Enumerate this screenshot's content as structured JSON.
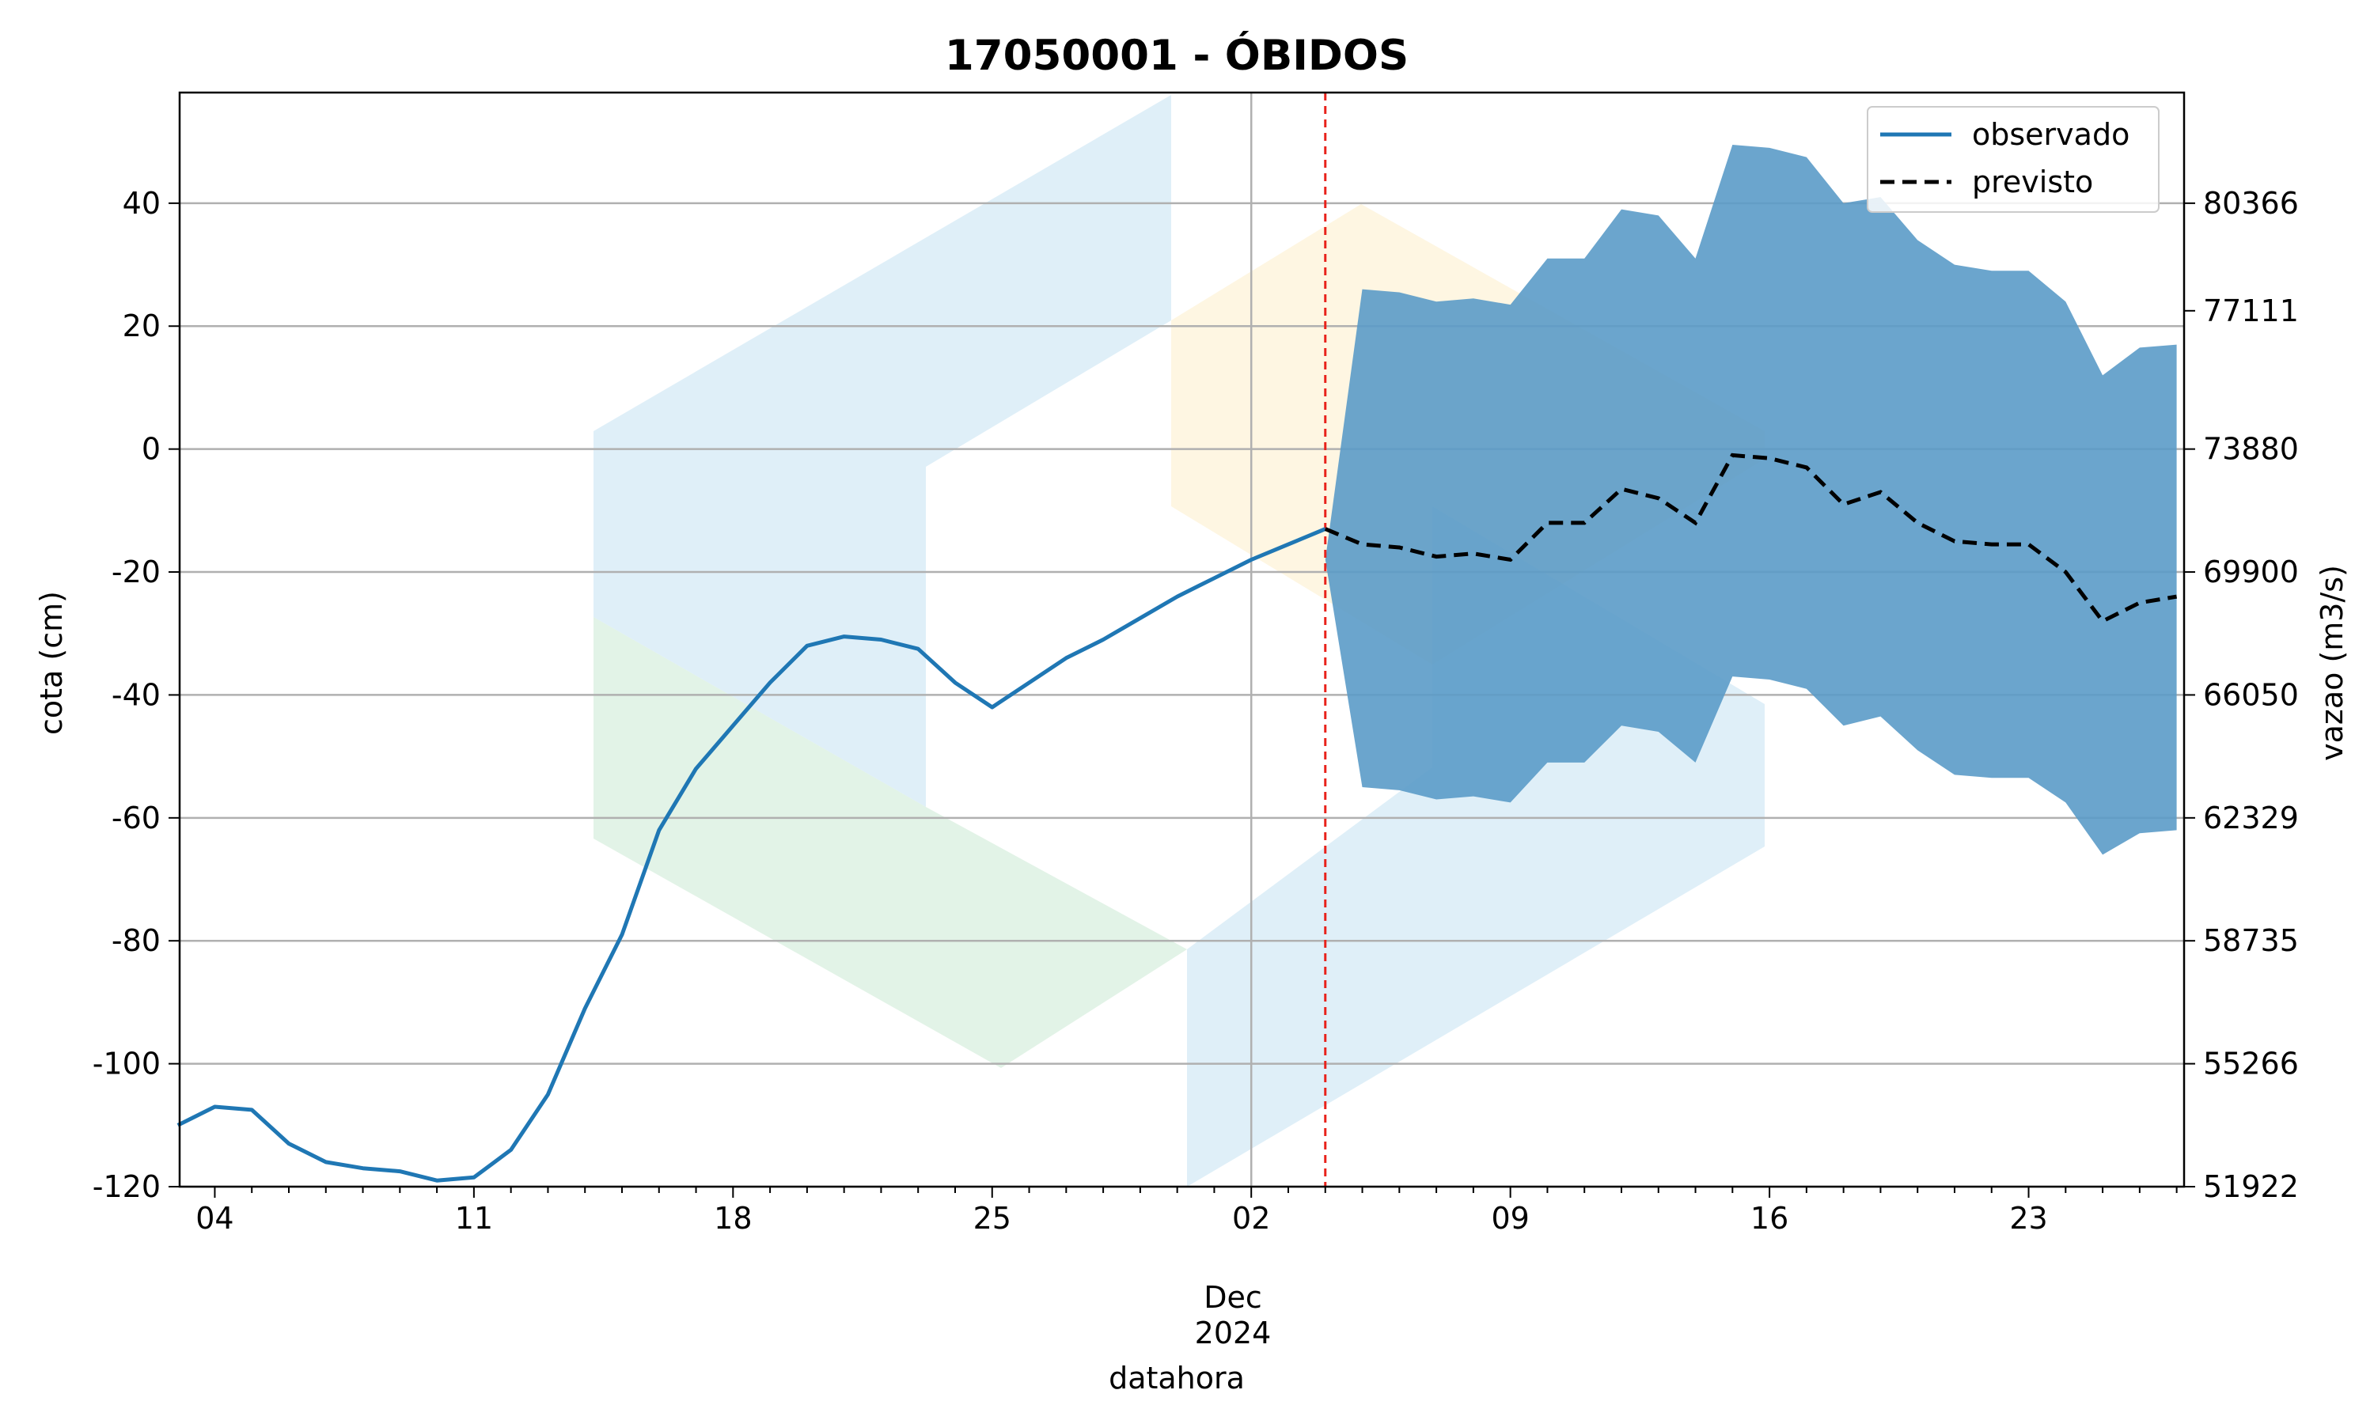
{
  "chart_data": {
    "type": "line",
    "title": "17050001 - ÓBIDOS",
    "xlabel": "datahora",
    "ylabel": "cota (cm)",
    "ylabel_right": "vazao (m3/s)",
    "x_range_days": [
      -0.95,
      53.2
    ],
    "ylim": [
      -120,
      58
    ],
    "y_ticks": [
      40,
      20,
      0,
      -20,
      -40,
      -60,
      -80,
      -100,
      -120
    ],
    "y_tick_labels": [
      "40",
      "20",
      "0",
      "-20",
      "-40",
      "-60",
      "-80",
      "-100",
      "-120"
    ],
    "y_right_ticks": [
      40,
      22.5,
      0,
      -20,
      -40,
      -60,
      -80,
      -100,
      -120
    ],
    "y_right_tick_labels": [
      "80366",
      "77111",
      "73880",
      "69900",
      "66050",
      "62329",
      "58735",
      "55266",
      "51922"
    ],
    "x_ticks": [
      0,
      7,
      14,
      21,
      28,
      35,
      42,
      49
    ],
    "x_tick_labels": [
      "04",
      "11",
      "18",
      "25",
      "02",
      "09",
      "16",
      "23"
    ],
    "x_month_label": "Dec",
    "x_year_label": "2024",
    "month_boundary_day": 28,
    "forecast_start_day": 30,
    "legend": {
      "position": "top-right",
      "entries": [
        {
          "label": "observado",
          "style": "solid",
          "color": "#1f77b4"
        },
        {
          "label": "previsto",
          "style": "dashed",
          "color": "#000000"
        }
      ]
    },
    "colors": {
      "observed": "#1f77b4",
      "forecast": "#000000",
      "band": "#5b9bc8",
      "forecast_marker": "#e8221b",
      "grid": "#b0b0b0"
    },
    "series": [
      {
        "name": "observado",
        "x": [
          -1,
          0,
          1,
          2,
          3,
          4,
          5,
          6,
          7,
          8,
          9,
          10,
          11,
          12,
          13,
          14,
          15,
          16,
          17,
          18,
          19,
          20,
          21,
          22,
          23,
          24,
          25,
          26,
          27,
          28,
          29,
          30
        ],
        "y": [
          -110,
          -107,
          -107.5,
          -113,
          -116,
          -117,
          -117.5,
          -119,
          -118.5,
          -114,
          -105,
          -91,
          -79,
          -62,
          -52,
          -45,
          -38,
          -32,
          -30.5,
          -31,
          -32.5,
          -38,
          -42,
          -38,
          -34,
          -31,
          -27.5,
          -24,
          -21,
          -18,
          -15.5,
          -13
        ]
      },
      {
        "name": "previsto",
        "x": [
          30,
          31,
          32,
          33,
          34,
          35,
          36,
          37,
          38,
          39,
          40,
          41,
          42,
          43,
          44,
          45,
          46,
          47,
          48,
          49,
          50,
          51,
          52,
          53
        ],
        "y": [
          -13,
          -15.5,
          -16,
          -17.5,
          -17,
          -18,
          -12,
          -12,
          -6.5,
          -8,
          -12,
          -1,
          -1.5,
          -3,
          -9,
          -7,
          -12,
          -15,
          -15.5,
          -15.5,
          -20,
          -28,
          -25,
          -24
        ]
      }
    ],
    "band": {
      "name": "forecast range",
      "x": [
        30,
        31,
        32,
        33,
        34,
        35,
        36,
        37,
        38,
        39,
        40,
        41,
        42,
        43,
        44,
        45,
        46,
        47,
        48,
        49,
        50,
        51,
        52,
        53
      ],
      "upper": [
        -18,
        26,
        25.5,
        24,
        24.5,
        23.5,
        31,
        31,
        39,
        38,
        31,
        49.5,
        49,
        47.5,
        40,
        41,
        34,
        30,
        29,
        29,
        24,
        12,
        16.5,
        17
      ],
      "lower": [
        -18,
        -55,
        -55.5,
        -57,
        -56.5,
        -57.5,
        -51,
        -51,
        -45,
        -46,
        -51,
        -37,
        -37.5,
        -39,
        -45,
        -43.5,
        -49,
        -53,
        -53.5,
        -53.5,
        -57.5,
        -66,
        -62.5,
        -62
      ]
    }
  }
}
